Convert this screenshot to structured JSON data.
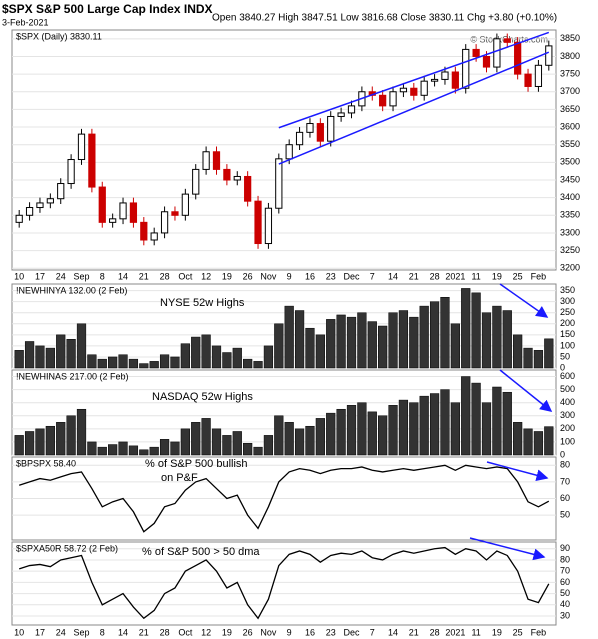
{
  "chart_data": [
    {
      "type": "candlestick",
      "title": "$SPX S&P 500 Large Cap Index INDX",
      "subtitle": "3-Feb-2021",
      "info": "Open 3840.27 High 3847.51 Low 3816.68 Close 3830.11 Chg +3.80 (+0.10%)",
      "credit": "© StockCharts.com",
      "legend": "$SPX (Daily) 3830.11",
      "categories": [
        "10",
        null,
        "17",
        null,
        "24",
        null,
        "Sep",
        null,
        "8",
        null,
        "14",
        null,
        "21",
        null,
        "28",
        null,
        "Oct",
        null,
        "12",
        null,
        "19",
        null,
        "26",
        null,
        "Nov",
        null,
        "9",
        null,
        "16",
        null,
        "23",
        null,
        "Dec",
        null,
        "7",
        null,
        "14",
        null,
        "21",
        null,
        "28",
        null,
        "2021",
        null,
        "11",
        null,
        "19",
        null,
        "25",
        null,
        "Feb",
        null
      ],
      "open": [
        3330,
        3350,
        3372,
        3385,
        3397,
        3440,
        3508,
        3580,
        3430,
        3330,
        3340,
        3385,
        3330,
        3280,
        3300,
        3360,
        3350,
        3410,
        3480,
        3530,
        3480,
        3450,
        3460,
        3390,
        3270,
        3370,
        3510,
        3550,
        3585,
        3610,
        3560,
        3630,
        3640,
        3660,
        3700,
        3690,
        3660,
        3700,
        3710,
        3690,
        3730,
        3735,
        3756,
        3710,
        3820,
        3800,
        3770,
        3850,
        3840,
        3750,
        3715,
        3775
      ],
      "high": [
        3365,
        3387,
        3400,
        3412,
        3455,
        3523,
        3595,
        3595,
        3445,
        3355,
        3400,
        3400,
        3345,
        3315,
        3375,
        3375,
        3425,
        3495,
        3545,
        3545,
        3495,
        3475,
        3475,
        3405,
        3385,
        3525,
        3565,
        3600,
        3625,
        3625,
        3645,
        3655,
        3675,
        3715,
        3715,
        3705,
        3715,
        3725,
        3725,
        3745,
        3750,
        3771,
        3771,
        3835,
        3835,
        3815,
        3865,
        3865,
        3855,
        3765,
        3790,
        3845
      ],
      "low": [
        3315,
        3335,
        3357,
        3370,
        3382,
        3425,
        3493,
        3415,
        3315,
        3315,
        3325,
        3315,
        3265,
        3265,
        3285,
        3335,
        3335,
        3395,
        3465,
        3465,
        3435,
        3435,
        3375,
        3255,
        3255,
        3355,
        3495,
        3535,
        3570,
        3545,
        3545,
        3615,
        3625,
        3645,
        3675,
        3645,
        3645,
        3685,
        3675,
        3675,
        3715,
        3720,
        3695,
        3695,
        3785,
        3755,
        3755,
        3825,
        3735,
        3700,
        3700,
        3760
      ],
      "close": [
        3350,
        3372,
        3385,
        3397,
        3440,
        3508,
        3580,
        3430,
        3330,
        3340,
        3385,
        3330,
        3280,
        3300,
        3360,
        3350,
        3410,
        3480,
        3530,
        3480,
        3450,
        3460,
        3390,
        3270,
        3370,
        3510,
        3550,
        3585,
        3610,
        3560,
        3630,
        3640,
        3660,
        3700,
        3690,
        3660,
        3700,
        3710,
        3690,
        3730,
        3735,
        3756,
        3710,
        3820,
        3800,
        3770,
        3850,
        3840,
        3750,
        3715,
        3775,
        3830
      ],
      "up_color": "#000000",
      "down_color": "#cc0000",
      "trendlines": [
        {
          "x": [
            25,
            51
          ],
          "values": [
            3598,
            3868
          ],
          "color": "#1a1aff"
        },
        {
          "x": [
            25,
            51
          ],
          "values": [
            3495,
            3812
          ],
          "color": "#1a1aff"
        }
      ],
      "ylim": [
        3195,
        3875
      ],
      "yticks": [
        3200,
        3250,
        3300,
        3350,
        3400,
        3450,
        3500,
        3550,
        3600,
        3650,
        3700,
        3750,
        3800,
        3850
      ],
      "grid": true
    },
    {
      "type": "bar",
      "legend": "!NEWHINYA 132.00 (2 Feb)",
      "title": "NYSE 52w Highs",
      "color": "#333333",
      "values": [
        80,
        120,
        100,
        90,
        150,
        130,
        200,
        60,
        40,
        50,
        60,
        40,
        20,
        30,
        60,
        50,
        110,
        140,
        150,
        100,
        70,
        90,
        40,
        30,
        100,
        200,
        280,
        260,
        180,
        150,
        220,
        240,
        230,
        250,
        210,
        190,
        250,
        260,
        230,
        280,
        300,
        320,
        200,
        360,
        340,
        250,
        280,
        260,
        150,
        90,
        80,
        132
      ],
      "ylim": [
        0,
        380
      ],
      "yticks": [
        0,
        50,
        100,
        150,
        200,
        250,
        300,
        350
      ],
      "grid": true
    },
    {
      "type": "bar",
      "legend": "!NEWHINAS 217.00 (2 Feb)",
      "title": "NASDAQ 52w Highs",
      "color": "#333333",
      "values": [
        150,
        180,
        200,
        220,
        250,
        300,
        350,
        100,
        60,
        80,
        100,
        70,
        40,
        60,
        120,
        100,
        200,
        250,
        280,
        200,
        150,
        180,
        90,
        60,
        150,
        300,
        250,
        200,
        220,
        280,
        320,
        350,
        380,
        400,
        330,
        300,
        380,
        420,
        400,
        450,
        470,
        500,
        400,
        600,
        550,
        400,
        520,
        480,
        250,
        200,
        180,
        217
      ],
      "ylim": [
        0,
        650
      ],
      "yticks": [
        0,
        100,
        200,
        300,
        400,
        500,
        600
      ],
      "grid": true
    },
    {
      "type": "line",
      "legend": "$BPSPX 58.40",
      "title": "% of S&P 500 bullish",
      "subtitle": "on  P&F",
      "color": "#000000",
      "values": [
        68,
        70,
        72,
        71,
        73,
        75,
        76,
        66,
        55,
        58,
        60,
        52,
        40,
        45,
        55,
        57,
        65,
        70,
        72,
        66,
        60,
        62,
        50,
        42,
        55,
        70,
        76,
        78,
        77,
        75,
        77,
        78,
        78,
        79,
        77,
        76,
        77,
        78,
        77,
        78,
        79,
        80,
        77,
        80,
        79,
        78,
        79,
        78,
        70,
        58,
        55,
        58.4
      ],
      "ylim": [
        35,
        85
      ],
      "yticks": [
        50,
        60,
        70,
        80
      ],
      "grid": true
    },
    {
      "type": "line",
      "legend": "$SPXA50R 58.72 (2 Feb)",
      "title": "% of S&P 500 > 50 dma",
      "color": "#000000",
      "categories": [
        "10",
        null,
        "17",
        null,
        "24",
        null,
        "Sep",
        null,
        "8",
        null,
        "14",
        null,
        "21",
        null,
        "28",
        null,
        "Oct",
        null,
        "12",
        null,
        "19",
        null,
        "26",
        null,
        "Nov",
        null,
        "9",
        null,
        "16",
        null,
        "23",
        null,
        "Dec",
        null,
        "7",
        null,
        "14",
        null,
        "21",
        null,
        "28",
        null,
        "2021",
        null,
        "11",
        null,
        "19",
        null,
        "25",
        null,
        "Feb",
        null
      ],
      "values": [
        72,
        75,
        76,
        74,
        80,
        82,
        84,
        60,
        40,
        45,
        50,
        38,
        28,
        35,
        50,
        55,
        70,
        75,
        80,
        70,
        55,
        60,
        40,
        28,
        45,
        75,
        85,
        88,
        85,
        78,
        84,
        86,
        85,
        88,
        82,
        80,
        85,
        88,
        86,
        88,
        90,
        91,
        85,
        90,
        88,
        80,
        88,
        84,
        70,
        45,
        42,
        58.72
      ],
      "ylim": [
        22,
        96
      ],
      "yticks": [
        30,
        40,
        50,
        60,
        70,
        80,
        90
      ],
      "grid": true
    }
  ]
}
